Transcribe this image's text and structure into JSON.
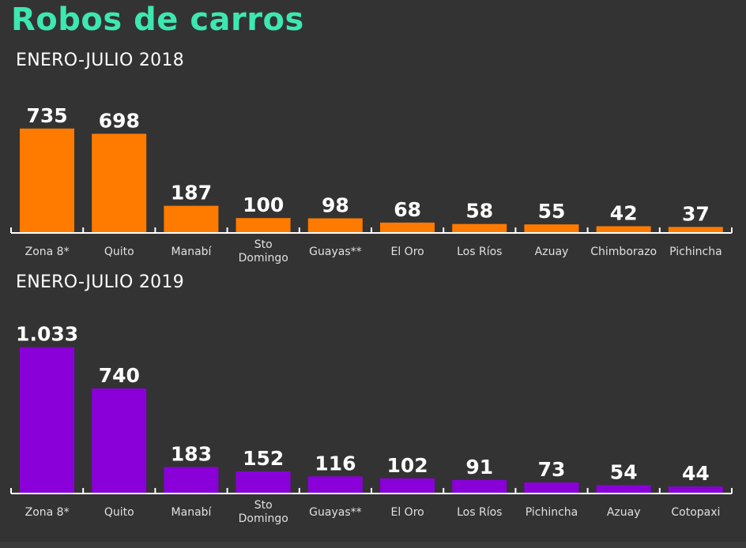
{
  "header": {
    "title": "Robos de carros"
  },
  "colors": {
    "title": "#3de8b0",
    "series_2018": "#ff7b00",
    "series_2019": "#8a00d8",
    "background": "#333333",
    "axis": "#ffffff"
  },
  "chart_data": [
    {
      "type": "bar",
      "title": "ENERO-JULIO 2018",
      "categories": [
        "Zona 8*",
        "Quito",
        "Manabí",
        "Sto Domingo",
        "Guayas**",
        "El Oro",
        "Los Ríos",
        "Azuay",
        "Chimborazo",
        "Pichincha"
      ],
      "values": [
        735,
        698,
        187,
        100,
        98,
        68,
        58,
        55,
        42,
        37
      ],
      "value_labels": [
        "735",
        "698",
        "187",
        "100",
        "98",
        "68",
        "58",
        "55",
        "42",
        "37"
      ],
      "xlabel": "",
      "ylabel": "",
      "ylim": [
        0,
        1033
      ],
      "grid": false,
      "color": "#ff7b00"
    },
    {
      "type": "bar",
      "title": "ENERO-JULIO 2019",
      "categories": [
        "Zona 8*",
        "Quito",
        "Manabí",
        "Sto Domingo",
        "Guayas**",
        "El Oro",
        "Los Ríos",
        "Pichincha",
        "Azuay",
        "Cotopaxi"
      ],
      "values": [
        1033,
        740,
        183,
        152,
        116,
        102,
        91,
        73,
        54,
        44
      ],
      "value_labels": [
        "1.033",
        "740",
        "183",
        "152",
        "116",
        "102",
        "91",
        "73",
        "54",
        "44"
      ],
      "xlabel": "",
      "ylabel": "",
      "ylim": [
        0,
        1033
      ],
      "grid": false,
      "color": "#8a00d8"
    }
  ]
}
